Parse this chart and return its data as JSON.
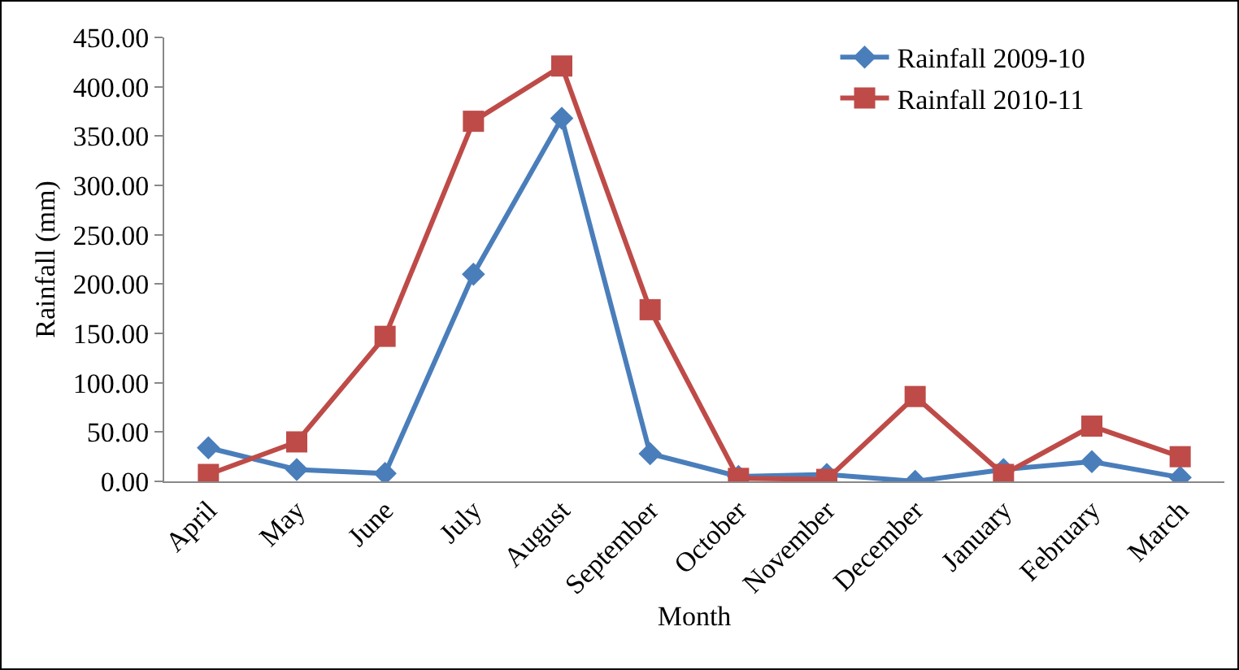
{
  "chart_data": {
    "type": "line",
    "xlabel": "Month",
    "ylabel": "Rainfall (mm)",
    "categories": [
      "April",
      "May",
      "June",
      "July",
      "August",
      "September",
      "October",
      "November",
      "December",
      "January",
      "February",
      "March"
    ],
    "series": [
      {
        "name": "Rainfall 2009-10",
        "color": "#4a7ebb",
        "marker": "diamond",
        "values": [
          34,
          12,
          8,
          210,
          368,
          28,
          5,
          7,
          0,
          12,
          20,
          4
        ]
      },
      {
        "name": "Rainfall 2010-11",
        "color": "#be4b48",
        "marker": "square",
        "values": [
          7,
          40,
          147,
          365,
          421,
          174,
          3,
          2,
          86,
          7,
          56,
          25
        ]
      }
    ],
    "ylim": [
      0,
      450
    ],
    "yticks": [
      {
        "value": 0,
        "label": "0.00"
      },
      {
        "value": 50,
        "label": "50.00"
      },
      {
        "value": 100,
        "label": "100.00"
      },
      {
        "value": 150,
        "label": "150.00"
      },
      {
        "value": 200,
        "label": "200.00"
      },
      {
        "value": 250,
        "label": "250.00"
      },
      {
        "value": 300,
        "label": "300.00"
      },
      {
        "value": 350,
        "label": "350.00"
      },
      {
        "value": 400,
        "label": "400.00"
      },
      {
        "value": 450,
        "label": "450.00"
      }
    ],
    "grid": false,
    "legend": "top right",
    "line_style": "solid"
  }
}
